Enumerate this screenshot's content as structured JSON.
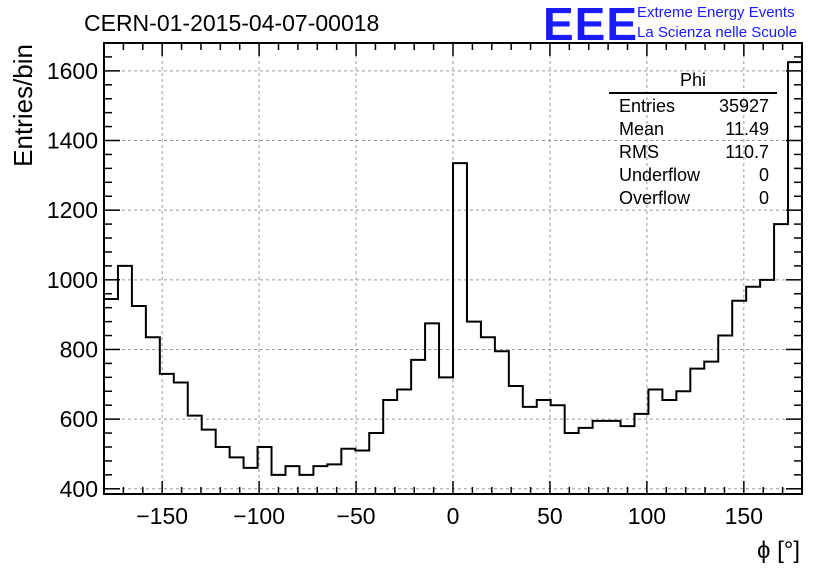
{
  "title": "CERN-01-2015-04-07-00018",
  "logo": {
    "mark": "EEE",
    "line1": "Extreme Energy Events",
    "line2": "La Scienza nelle Scuole"
  },
  "stats_box": {
    "title": "Phi",
    "rows": [
      {
        "label": "Entries",
        "value": "35927"
      },
      {
        "label": "Mean",
        "value": "11.49"
      },
      {
        "label": "RMS",
        "value": "110.7"
      },
      {
        "label": "Underflow",
        "value": "0"
      },
      {
        "label": "Overflow",
        "value": "0"
      }
    ]
  },
  "chart_data": {
    "type": "histogram",
    "title": "CERN-01-2015-04-07-00018",
    "xlabel": "ϕ [°]",
    "ylabel": "Entries/bin",
    "xlim": [
      -180,
      180
    ],
    "ylim": [
      385,
      1680
    ],
    "x_ticks": [
      -150,
      -100,
      -50,
      0,
      50,
      100,
      150
    ],
    "y_ticks": [
      400,
      600,
      800,
      1000,
      1200,
      1400,
      1600
    ],
    "grid": true,
    "bin_edges": [
      -180,
      -172.8,
      -165.6,
      -158.4,
      -151.2,
      -144,
      -136.8,
      -129.6,
      -122.4,
      -115.2,
      -108,
      -100.8,
      -93.6,
      -86.4,
      -79.2,
      -72,
      -64.8,
      -57.6,
      -50.4,
      -43.2,
      -36,
      -28.8,
      -21.6,
      -14.4,
      -7.2,
      0,
      7.2,
      14.4,
      21.6,
      28.8,
      36,
      43.2,
      50.4,
      57.6,
      64.8,
      72,
      79.2,
      86.4,
      93.6,
      100.8,
      108,
      115.2,
      122.4,
      129.6,
      136.8,
      144,
      151.2,
      158.4,
      165.6,
      172.8,
      180
    ],
    "values": [
      945,
      1040,
      925,
      835,
      730,
      705,
      610,
      570,
      520,
      490,
      460,
      520,
      440,
      465,
      440,
      465,
      470,
      515,
      510,
      560,
      655,
      685,
      770,
      875,
      720,
      1335,
      880,
      835,
      795,
      695,
      635,
      655,
      640,
      560,
      575,
      595,
      595,
      580,
      615,
      685,
      655,
      680,
      745,
      765,
      840,
      940,
      980,
      1000,
      1160,
      1625
    ]
  }
}
